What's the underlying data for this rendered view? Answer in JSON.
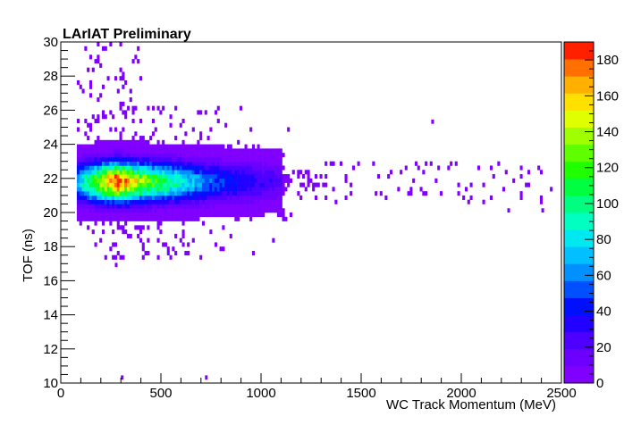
{
  "chart_data": {
    "type": "heatmap",
    "title": "LArIAT Preliminary",
    "xlabel": "WC Track Momentum (MeV)",
    "ylabel": "TOF (ns)",
    "xlim": [
      0,
      2500
    ],
    "ylim": [
      10,
      30
    ],
    "x_ticks": [
      0,
      500,
      1000,
      1500,
      2000,
      2500
    ],
    "y_ticks": [
      10,
      12,
      14,
      16,
      18,
      20,
      22,
      24,
      26,
      28,
      30
    ],
    "colorbar": {
      "range": [
        0,
        190
      ],
      "ticks": [
        0,
        20,
        40,
        60,
        80,
        100,
        120,
        140,
        160,
        180
      ],
      "palette": [
        "#8000ff",
        "#6b00ff",
        "#4d00ff",
        "#2200ff",
        "#0010ff",
        "#0050ff",
        "#0090ff",
        "#00c0ff",
        "#00e8f0",
        "#00ffc0",
        "#00ff80",
        "#00ff40",
        "#20ff00",
        "#60ff00",
        "#a0ff00",
        "#e0ff00",
        "#ffe000",
        "#ffb000",
        "#ff7000",
        "#ff2000"
      ]
    },
    "grid": false,
    "distribution": {
      "core": {
        "tof_center": 21.8,
        "tof_sigma": 0.75,
        "momentum_peak": 280,
        "max_count": 190
      },
      "momentum_extent": [
        80,
        2450
      ]
    }
  }
}
